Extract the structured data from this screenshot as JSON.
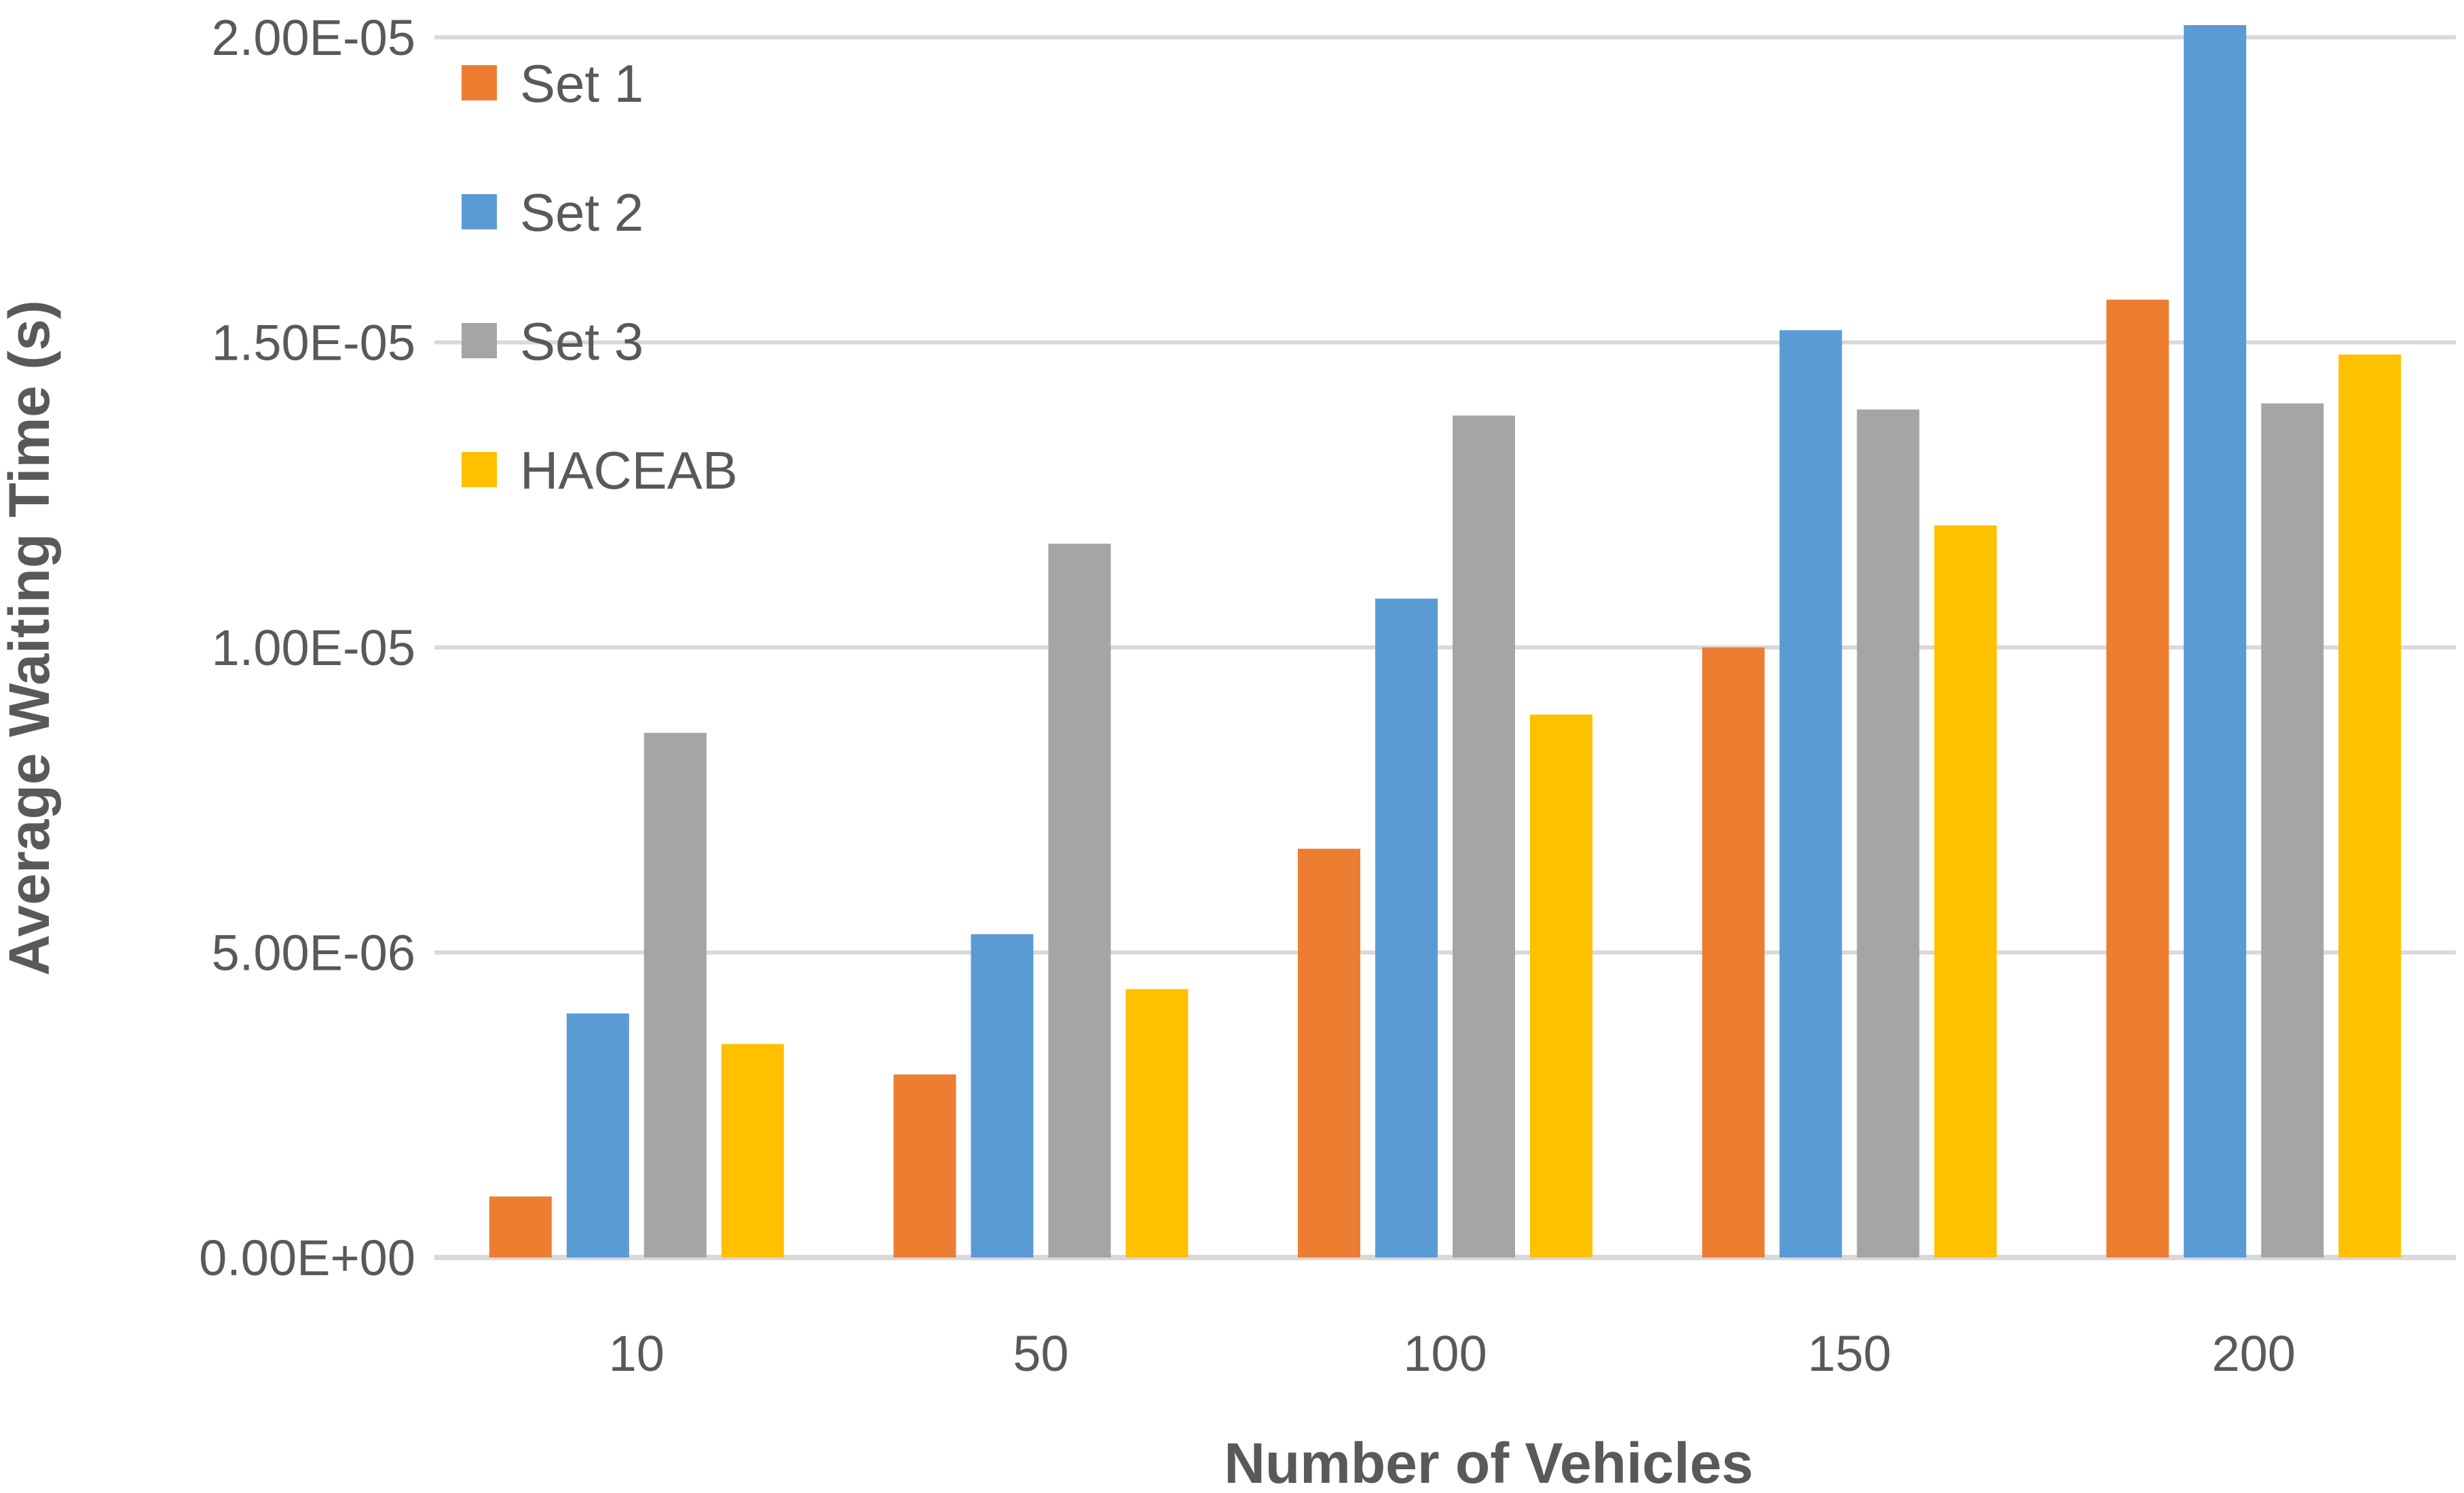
{
  "chart_data": {
    "type": "bar",
    "title": "",
    "xlabel": "Number of Vehicles",
    "ylabel": "Average Waiting Time (s)",
    "categories": [
      "10",
      "50",
      "100",
      "150",
      "200"
    ],
    "ylim": [
      0,
      2e-05
    ],
    "yticks": [
      0,
      5e-06,
      1e-05,
      1.5e-05,
      2e-05
    ],
    "ytick_labels": [
      "0.00E+00",
      "5.00E-06",
      "1.00E-05",
      "1.50E-05",
      "2.00E-05"
    ],
    "grid": true,
    "legend_position": "top-left",
    "series": [
      {
        "name": "Set 1",
        "color": "#ED7D31",
        "values": [
          1e-06,
          3e-06,
          6.7e-06,
          1e-05,
          1.57e-05
        ]
      },
      {
        "name": "Set 2",
        "color": "#5B9BD5",
        "values": [
          4e-06,
          5.3e-06,
          1.08e-05,
          1.52e-05,
          2.02e-05
        ]
      },
      {
        "name": "Set 3",
        "color": "#A5A5A5",
        "values": [
          8.6e-06,
          1.17e-05,
          1.38e-05,
          1.39e-05,
          1.4e-05
        ]
      },
      {
        "name": "HACEAB",
        "color": "#FFC000",
        "values": [
          3.5e-06,
          4.4e-06,
          8.9e-06,
          1.2e-05,
          1.48e-05
        ]
      }
    ]
  }
}
